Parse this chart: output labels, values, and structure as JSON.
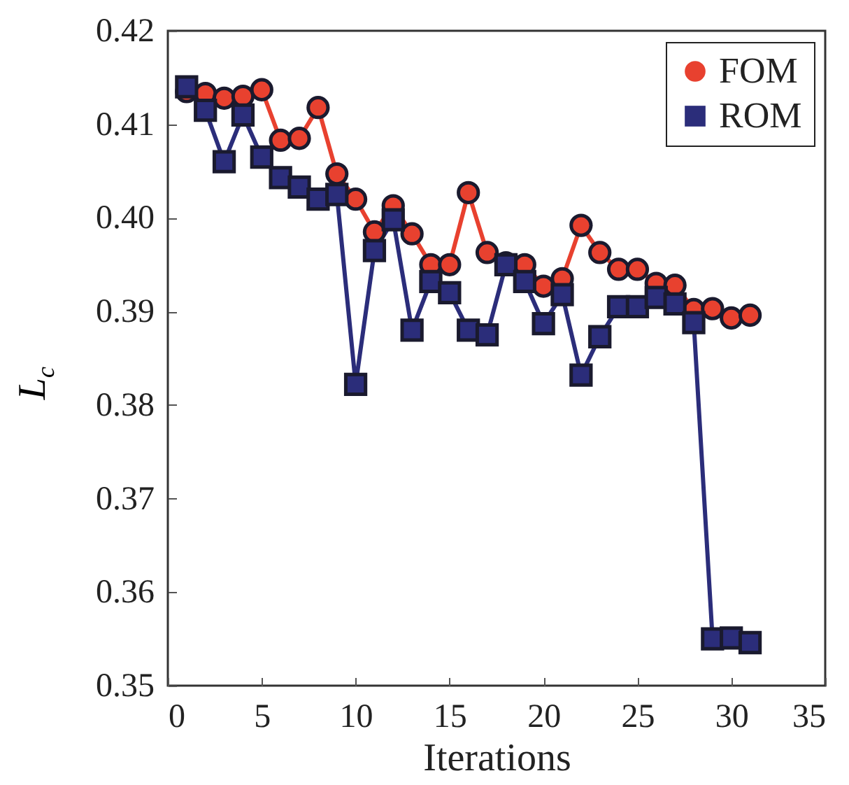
{
  "chart_data": {
    "type": "line",
    "xlabel": "Iterations",
    "ylabel": "L$_{c}$",
    "x": [
      1,
      2,
      3,
      4,
      5,
      6,
      7,
      8,
      9,
      10,
      11,
      12,
      13,
      14,
      15,
      16,
      17,
      18,
      19,
      20,
      21,
      22,
      23,
      24,
      25,
      26,
      27,
      28,
      29,
      30,
      31
    ],
    "series": [
      {
        "name": "FOM",
        "color": "#e8412f",
        "marker": "circle",
        "values": [
          0.4135,
          0.4133,
          0.4128,
          0.413,
          0.4137,
          0.4083,
          0.4085,
          0.4118,
          0.4047,
          0.402,
          0.3985,
          0.4013,
          0.3983,
          0.395,
          0.395,
          0.4027,
          0.3963,
          0.3952,
          0.395,
          0.3927,
          0.3935,
          0.3992,
          0.3963,
          0.3945,
          0.3945,
          0.393,
          0.3928,
          0.3902,
          0.3903,
          0.3893,
          0.3896
        ]
      },
      {
        "name": "ROM",
        "color": "#2b2d7a",
        "marker": "square",
        "values": [
          0.414,
          0.4115,
          0.406,
          0.411,
          0.4065,
          0.4043,
          0.4033,
          0.402,
          0.4025,
          0.3822,
          0.3965,
          0.3998,
          0.388,
          0.3932,
          0.392,
          0.388,
          0.3875,
          0.395,
          0.3932,
          0.3887,
          0.3918,
          0.3832,
          0.3873,
          0.3905,
          0.3905,
          0.3915,
          0.3908,
          0.3888,
          0.355,
          0.3551,
          0.3546
        ]
      }
    ],
    "xlim": [
      0,
      35
    ],
    "xticks": [
      0,
      5,
      10,
      15,
      20,
      25,
      30,
      35
    ],
    "ylim": [
      0.35,
      0.42
    ],
    "yticks": [
      {
        "value": 0.35,
        "label": "0.35"
      },
      {
        "value": 0.36,
        "label": "0.36"
      },
      {
        "value": 0.37,
        "label": "0.37"
      },
      {
        "value": 0.38,
        "label": "0.38"
      },
      {
        "value": 0.39,
        "label": "0.39"
      },
      {
        "value": 0.4,
        "label": "0.40"
      },
      {
        "value": 0.41,
        "label": "0.41"
      },
      {
        "value": 0.42,
        "label": "0.42"
      }
    ],
    "grid": false,
    "legend": "top right",
    "line_style": "solid"
  }
}
